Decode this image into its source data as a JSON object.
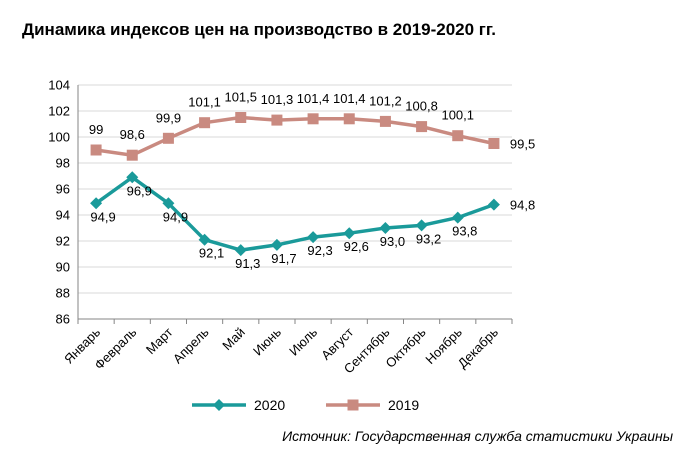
{
  "title": "Динамика индексов цен на производство в 2019-2020 гг.",
  "source": "Источник: Государственная служба статистики Украины",
  "colors": {
    "series_2020": "#1a9a9a",
    "series_2019": "#c98a80",
    "grid": "#d9d9d9",
    "axis": "#868686"
  },
  "chart_data": {
    "type": "line",
    "categories": [
      "Январь",
      "Февраль",
      "Март",
      "Апрель",
      "Май",
      "Июнь",
      "Июль",
      "Август",
      "Сентябрь",
      "Октябрь",
      "Ноябрь",
      "Декабрь"
    ],
    "ylim": [
      86,
      104
    ],
    "yticks": [
      "86",
      "88",
      "90",
      "92",
      "94",
      "96",
      "98",
      "100",
      "102",
      "104"
    ],
    "grid": true,
    "legend_position": "bottom",
    "series": [
      {
        "name": "2020",
        "color": "#1a9a9a",
        "marker": "diamond",
        "values": [
          94.9,
          96.9,
          94.9,
          92.1,
          91.3,
          91.7,
          92.3,
          92.6,
          93.0,
          93.2,
          93.8,
          94.8
        ],
        "labels": [
          "94,9",
          "96,9",
          "94,9",
          "92,1",
          "91,3",
          "91,7",
          "92,3",
          "92,6",
          "93,0",
          "93,2",
          "93,8",
          "94,8"
        ]
      },
      {
        "name": "2019",
        "color": "#c98a80",
        "marker": "square",
        "values": [
          99,
          98.6,
          99.9,
          101.1,
          101.5,
          101.3,
          101.4,
          101.4,
          101.2,
          100.8,
          100.1,
          99.5
        ],
        "labels": [
          "99",
          "98,6",
          "99,9",
          "101,1",
          "101,5",
          "101,3",
          "101,4",
          "101,4",
          "101,2",
          "100,8",
          "100,1",
          "99,5"
        ]
      }
    ]
  }
}
